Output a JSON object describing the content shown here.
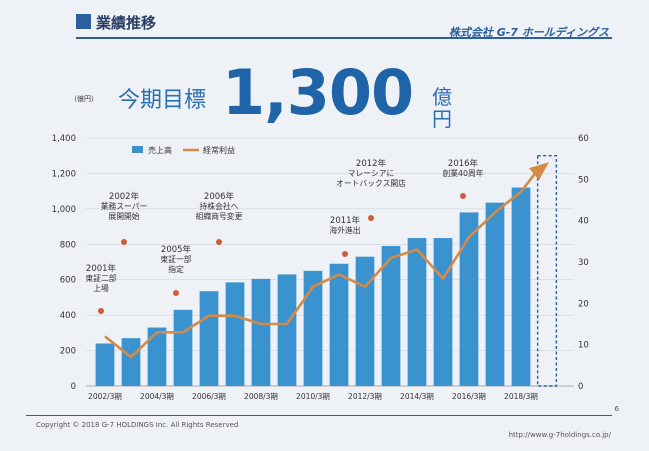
{
  "header": {
    "title": "業績推移",
    "company": "株式会社 G-7 ホールディングス"
  },
  "target": {
    "label": "今期目標",
    "value": "1,300",
    "unit": "億円"
  },
  "footer": {
    "copyright": "Copyright © 2018 G-7 HOLDINGS Inc. All Rights Reserved",
    "url": "http://www.g-7holdings.co.jp/",
    "page": "6"
  },
  "colors": {
    "bar": "#3a92cf",
    "line": "#d58a47",
    "accent": "#2b5f9e",
    "annotation": "#d05a3a"
  },
  "chart_data": {
    "type": "bar",
    "y_unit_label": "（億円）",
    "ylim": [
      0,
      1400
    ],
    "y2lim": [
      0,
      60
    ],
    "yticks": [
      "0",
      "200",
      "400",
      "600",
      "800",
      "1,000",
      "1,200",
      "1,400"
    ],
    "y2ticks": [
      "0",
      "10",
      "20",
      "30",
      "40",
      "50",
      "60"
    ],
    "x_labels": [
      "2002/3期",
      "2004/3期",
      "2006/3期",
      "2008/3期",
      "2010/3期",
      "2012/3期",
      "2014/3期",
      "2016/3期",
      "2018/3期"
    ],
    "categories": [
      "2002/3",
      "2003/3",
      "2004/3",
      "2005/3",
      "2006/3",
      "2007/3",
      "2008/3",
      "2009/3",
      "2010/3",
      "2011/3",
      "2012/3",
      "2013/3",
      "2014/3",
      "2015/3",
      "2016/3",
      "2017/3",
      "2018/3"
    ],
    "legend_position": "top-left",
    "series": [
      {
        "name": "売上高",
        "type": "bar",
        "axis": "left",
        "values": [
          240,
          270,
          330,
          430,
          535,
          585,
          605,
          630,
          650,
          690,
          730,
          790,
          835,
          835,
          980,
          1035,
          1120
        ]
      },
      {
        "name": "経常利益",
        "type": "line",
        "axis": "right",
        "values": [
          12,
          7,
          13,
          13,
          17,
          17,
          15,
          15,
          24,
          27,
          24,
          31,
          33,
          26,
          36,
          42,
          47
        ]
      }
    ],
    "target": {
      "category": "2019/3",
      "value": 1300
    },
    "annotations": [
      {
        "lines": [
          "2001年",
          "東証二部",
          "上場"
        ],
        "color": "#d05a3a"
      },
      {
        "lines": [
          "2002年",
          "業務スーパー",
          "展開開始"
        ],
        "color": "#d05a3a"
      },
      {
        "lines": [
          "2005年",
          "東証一部",
          "指定"
        ],
        "color": "#d05a3a"
      },
      {
        "lines": [
          "2006年",
          "持株会社へ",
          "組織商号変更"
        ],
        "color": "#d05a3a"
      },
      {
        "lines": [
          "2011年",
          "海外進出"
        ],
        "color": "#d05a3a"
      },
      {
        "lines": [
          "2012年",
          "マレーシアに",
          "オートバックス開店"
        ],
        "color": "#d05a3a"
      },
      {
        "lines": [
          "2016年",
          "創業40周年"
        ],
        "color": "#d05a3a"
      }
    ]
  }
}
